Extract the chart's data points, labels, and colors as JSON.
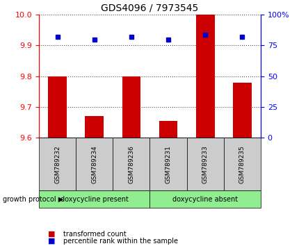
{
  "title": "GDS4096 / 7973545",
  "samples": [
    "GSM789232",
    "GSM789234",
    "GSM789236",
    "GSM789231",
    "GSM789233",
    "GSM789235"
  ],
  "transformed_counts": [
    9.8,
    9.67,
    9.8,
    9.655,
    10.0,
    9.78
  ],
  "percentile_ranks": [
    82,
    80,
    82,
    80,
    84,
    82
  ],
  "ylim_left": [
    9.6,
    10.0
  ],
  "ylim_right": [
    0,
    100
  ],
  "yticks_left": [
    9.6,
    9.7,
    9.8,
    9.9,
    10.0
  ],
  "yticks_right": [
    0,
    25,
    50,
    75,
    100
  ],
  "ytick_labels_right": [
    "0",
    "25",
    "50",
    "75",
    "100%"
  ],
  "bar_color": "#cc0000",
  "dot_color": "#0000cc",
  "group1_label": "doxycycline present",
  "group2_label": "doxycycline absent",
  "group_label_prefix": "growth protocol ▶",
  "group_bg_color": "#90ee90",
  "sample_box_color": "#cccccc",
  "legend_bar_label": "transformed count",
  "legend_dot_label": "percentile rank within the sample",
  "bar_width": 0.5,
  "grid_color": "#000000",
  "grid_alpha": 0.7
}
